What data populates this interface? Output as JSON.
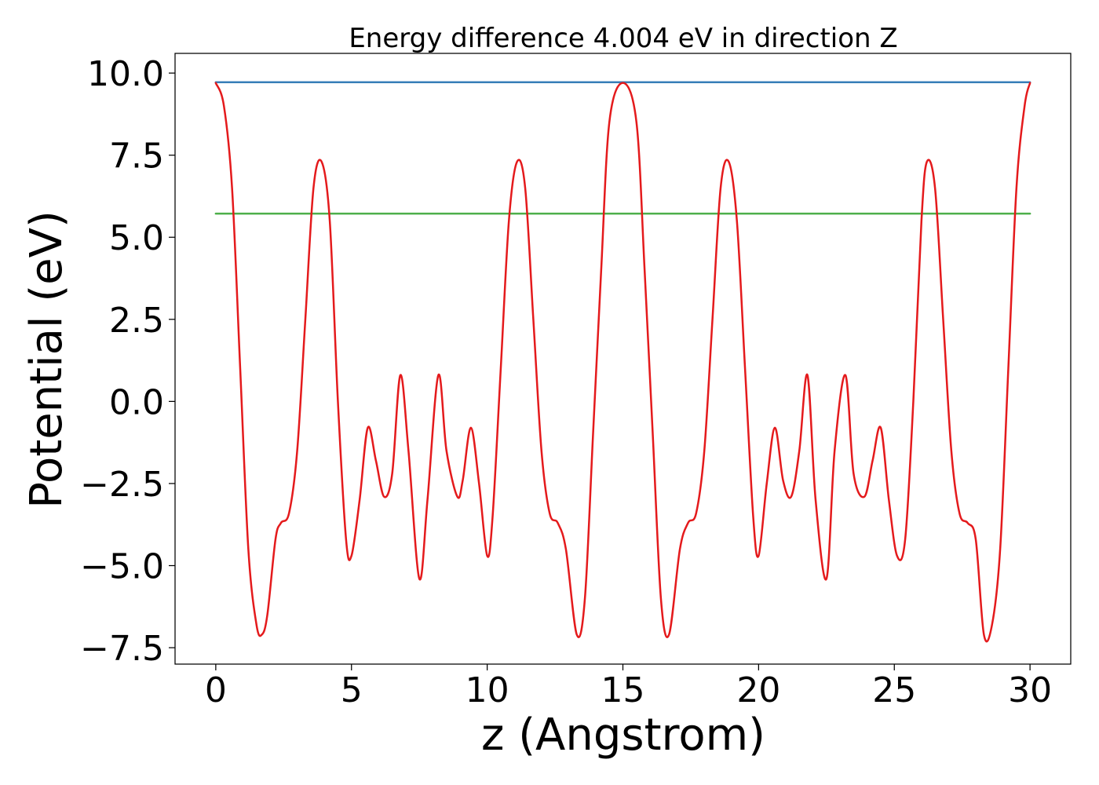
{
  "chart_data": {
    "type": "line",
    "title": "Energy difference 4.004 eV in direction Z",
    "xlabel": "z (Angstrom)",
    "ylabel": "Potential (eV)",
    "xlim": [
      -1.5,
      31.5
    ],
    "ylim": [
      -8.0,
      10.6
    ],
    "xticks": [
      0,
      5,
      10,
      15,
      20,
      25,
      30
    ],
    "xtick_labels": [
      "0",
      "5",
      "10",
      "15",
      "20",
      "25",
      "30"
    ],
    "yticks": [
      10.0,
      7.5,
      5.0,
      2.5,
      0.0,
      -2.5,
      -5.0,
      -7.5
    ],
    "ytick_labels": [
      "10.0",
      "7.5",
      "5.0",
      "2.5",
      "0.0",
      "−2.5",
      "−5.0",
      "−7.5"
    ],
    "grid": false,
    "legend": "none",
    "series": [
      {
        "color": "#e41a1c",
        "x": [
          0.0,
          0.3,
          0.6,
          0.9,
          1.2,
          1.5,
          1.7,
          1.9,
          2.2,
          2.4,
          2.7,
          3.0,
          3.3,
          3.6,
          3.9,
          4.2,
          4.5,
          4.8,
          5.0,
          5.3,
          5.6,
          5.9,
          6.2,
          6.5,
          6.8,
          7.1,
          7.5,
          7.8,
          8.2,
          8.5,
          8.9,
          9.1,
          9.4,
          9.7,
          10.0,
          10.2,
          10.5,
          10.8,
          11.1,
          11.4,
          11.7,
          12.0,
          12.3,
          12.6,
          12.9,
          13.3,
          13.6,
          13.9,
          14.2,
          14.5,
          15.0,
          15.5,
          15.8,
          16.1,
          16.4,
          16.7,
          17.1,
          17.4,
          17.7,
          18.0,
          18.3,
          18.6,
          18.9,
          19.2,
          19.5,
          19.8,
          20.0,
          20.3,
          20.6,
          20.9,
          21.2,
          21.5,
          21.8,
          22.1,
          22.5,
          22.8,
          23.2,
          23.5,
          23.9,
          24.2,
          24.5,
          24.8,
          25.1,
          25.4,
          25.7,
          26.0,
          26.2,
          26.5,
          26.8,
          27.1,
          27.4,
          27.7,
          28.0,
          28.3,
          28.6,
          28.9,
          29.2,
          29.5,
          29.8,
          30.0
        ],
        "y": [
          9.7,
          9.0,
          6.5,
          1.0,
          -4.5,
          -6.8,
          -7.1,
          -6.5,
          -4.2,
          -3.7,
          -3.4,
          -1.5,
          2.5,
          6.5,
          7.3,
          5.5,
          0.0,
          -4.2,
          -4.7,
          -3.0,
          -0.8,
          -1.8,
          -2.9,
          -2.2,
          0.8,
          -1.5,
          -5.4,
          -3.0,
          0.8,
          -1.5,
          -2.9,
          -2.4,
          -0.8,
          -2.5,
          -4.7,
          -3.5,
          1.0,
          5.5,
          7.3,
          6.5,
          2.5,
          -1.5,
          -3.4,
          -3.7,
          -4.5,
          -7.1,
          -6.0,
          -1.0,
          4.0,
          8.5,
          9.7,
          8.5,
          4.0,
          -1.0,
          -6.0,
          -7.1,
          -4.5,
          -3.7,
          -3.4,
          -1.5,
          2.5,
          6.5,
          7.3,
          5.5,
          1.0,
          -3.5,
          -4.7,
          -2.5,
          -0.8,
          -2.4,
          -2.9,
          -1.5,
          0.8,
          -3.0,
          -5.4,
          -1.5,
          0.8,
          -2.2,
          -2.9,
          -1.8,
          -0.8,
          -3.0,
          -4.7,
          -4.2,
          0.0,
          5.5,
          7.3,
          6.5,
          2.5,
          -1.5,
          -3.4,
          -3.7,
          -4.2,
          -7.1,
          -6.8,
          -4.5,
          1.0,
          6.5,
          9.0,
          9.7
        ]
      },
      {
        "color": "#377eb8",
        "x": [
          0,
          30
        ],
        "y": [
          9.72,
          9.72
        ]
      },
      {
        "color": "#4daf4a",
        "x": [
          0,
          30
        ],
        "y": [
          5.72,
          5.72
        ]
      }
    ]
  }
}
